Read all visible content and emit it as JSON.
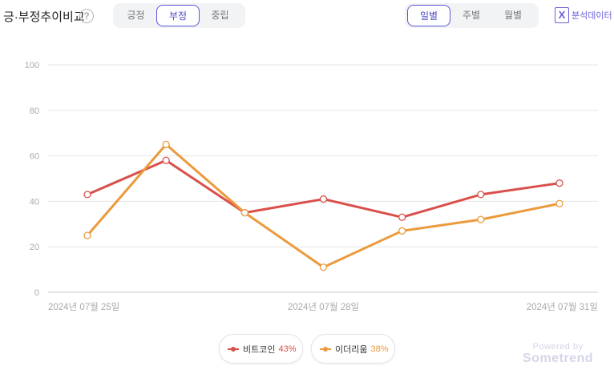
{
  "header": {
    "title": "긍·부정추이비교",
    "help_icon": "?",
    "sentiment_tabs": [
      {
        "label": "긍정"
      },
      {
        "label": "부정"
      },
      {
        "label": "중립"
      }
    ],
    "period_tabs": [
      {
        "label": "일별"
      },
      {
        "label": "주별"
      },
      {
        "label": "월별"
      }
    ],
    "export_label": "분석데이터",
    "export_icon": "X"
  },
  "legend": [
    {
      "name": "비트코인",
      "pct": "43%",
      "color": "#d9504a"
    },
    {
      "name": "이더리움",
      "pct": "38%",
      "color": "#eb9a3c"
    }
  ],
  "branding": {
    "powered_by": "Powered by",
    "logo": "Sometrend"
  },
  "chart_data": {
    "type": "line",
    "x": [
      "2024-07-25",
      "",
      "",
      "2024-07-28",
      "",
      "",
      "2024-07-31"
    ],
    "tick_labels": [
      "2024년 07월 25일",
      "",
      "",
      "2024년 07월 28일",
      "",
      "",
      "2024년 07월 31일"
    ],
    "ylim": [
      0,
      100
    ],
    "yticks": [
      0,
      20,
      40,
      60,
      80,
      100
    ],
    "grid": true,
    "series": [
      {
        "name": "비트코인",
        "values": [
          43,
          58,
          35,
          41,
          33,
          43,
          48
        ],
        "color": "#d9504a"
      },
      {
        "name": "이더리움",
        "values": [
          25,
          65,
          35,
          11,
          27,
          32,
          39
        ],
        "color": "#eb9a3c"
      }
    ]
  }
}
